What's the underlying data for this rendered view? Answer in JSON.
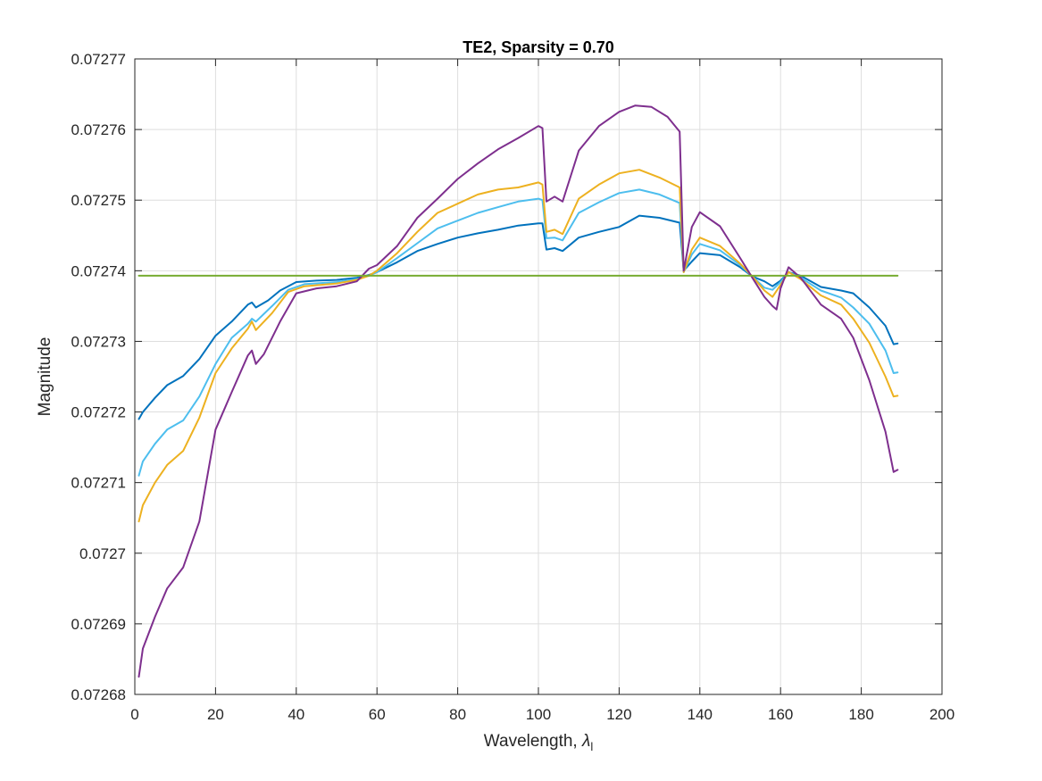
{
  "chart_data": {
    "type": "line",
    "title": "TE2, Sparsity = 0.70",
    "xlabel": "Wavelength, ",
    "xlabel_symbol": "λ",
    "xlabel_subscript": "l",
    "ylabel": "Magnitude",
    "xlim": [
      0,
      200
    ],
    "ylim": [
      0.07268,
      0.07277
    ],
    "xticks": [
      0,
      20,
      40,
      60,
      80,
      100,
      120,
      140,
      160,
      180,
      200
    ],
    "xtick_labels": [
      "0",
      "20",
      "40",
      "60",
      "80",
      "100",
      "120",
      "140",
      "160",
      "180",
      "200"
    ],
    "yticks": [
      0.07268,
      0.07269,
      0.0727,
      0.07271,
      0.07272,
      0.07273,
      0.07274,
      0.07275,
      0.07276,
      0.07277
    ],
    "ytick_labels": [
      "0.07268",
      "0.07269",
      "0.0727",
      "0.07271",
      "0.07272",
      "0.07273",
      "0.07274",
      "0.07275",
      "0.07276",
      "0.07277"
    ],
    "grid": true,
    "series": [
      {
        "color": "#0072BD",
        "points": [
          [
            1,
            0.072719
          ],
          [
            2,
            0.07272
          ],
          [
            5,
            0.072722
          ],
          [
            8,
            0.0727238
          ],
          [
            12,
            0.0727251
          ],
          [
            16,
            0.0727275
          ],
          [
            20,
            0.0727308
          ],
          [
            24,
            0.0727328
          ],
          [
            28,
            0.0727352
          ],
          [
            29,
            0.0727355
          ],
          [
            30,
            0.0727348
          ],
          [
            33,
            0.0727358
          ],
          [
            36,
            0.0727372
          ],
          [
            40,
            0.0727384
          ],
          [
            45,
            0.0727386
          ],
          [
            50,
            0.0727387
          ],
          [
            55,
            0.072739
          ],
          [
            58,
            0.0727394
          ],
          [
            60,
            0.0727398
          ],
          [
            65,
            0.0727412
          ],
          [
            70,
            0.0727428
          ],
          [
            75,
            0.0727438
          ],
          [
            80,
            0.0727447
          ],
          [
            85,
            0.0727453
          ],
          [
            90,
            0.0727458
          ],
          [
            95,
            0.0727464
          ],
          [
            100,
            0.0727467
          ],
          [
            101,
            0.0727467
          ],
          [
            102,
            0.072743
          ],
          [
            104,
            0.0727432
          ],
          [
            106,
            0.0727428
          ],
          [
            110,
            0.0727447
          ],
          [
            115,
            0.0727455
          ],
          [
            120,
            0.0727462
          ],
          [
            125,
            0.0727478
          ],
          [
            130,
            0.0727475
          ],
          [
            135,
            0.0727468
          ],
          [
            136,
            0.07274
          ],
          [
            138,
            0.0727413
          ],
          [
            140,
            0.0727425
          ],
          [
            145,
            0.0727422
          ],
          [
            150,
            0.0727405
          ],
          [
            153,
            0.0727392
          ],
          [
            156,
            0.0727385
          ],
          [
            158,
            0.0727378
          ],
          [
            160,
            0.0727386
          ],
          [
            162,
            0.0727398
          ],
          [
            165,
            0.0727393
          ],
          [
            170,
            0.0727377
          ],
          [
            175,
            0.0727372
          ],
          [
            178,
            0.0727368
          ],
          [
            182,
            0.0727348
          ],
          [
            186,
            0.0727322
          ],
          [
            188,
            0.0727296
          ],
          [
            189,
            0.0727297
          ]
        ]
      },
      {
        "color": "#4DBEEE",
        "points": [
          [
            1,
            0.072711
          ],
          [
            2,
            0.072713
          ],
          [
            5,
            0.0727155
          ],
          [
            8,
            0.0727175
          ],
          [
            12,
            0.0727188
          ],
          [
            16,
            0.0727222
          ],
          [
            20,
            0.0727268
          ],
          [
            24,
            0.0727305
          ],
          [
            28,
            0.0727325
          ],
          [
            29,
            0.0727332
          ],
          [
            30,
            0.0727328
          ],
          [
            34,
            0.072735
          ],
          [
            38,
            0.0727373
          ],
          [
            42,
            0.0727381
          ],
          [
            50,
            0.0727384
          ],
          [
            55,
            0.0727388
          ],
          [
            58,
            0.0727393
          ],
          [
            60,
            0.0727398
          ],
          [
            65,
            0.0727418
          ],
          [
            70,
            0.0727439
          ],
          [
            75,
            0.072746
          ],
          [
            80,
            0.0727471
          ],
          [
            85,
            0.0727482
          ],
          [
            90,
            0.072749
          ],
          [
            95,
            0.0727498
          ],
          [
            100,
            0.0727502
          ],
          [
            101,
            0.07275
          ],
          [
            102,
            0.0727446
          ],
          [
            104,
            0.0727447
          ],
          [
            106,
            0.0727443
          ],
          [
            110,
            0.0727482
          ],
          [
            115,
            0.0727497
          ],
          [
            120,
            0.072751
          ],
          [
            125,
            0.0727515
          ],
          [
            130,
            0.0727508
          ],
          [
            135,
            0.0727496
          ],
          [
            136,
            0.0727398
          ],
          [
            138,
            0.0727423
          ],
          [
            140,
            0.0727438
          ],
          [
            145,
            0.0727429
          ],
          [
            150,
            0.0727408
          ],
          [
            153,
            0.0727392
          ],
          [
            156,
            0.0727376
          ],
          [
            158,
            0.0727373
          ],
          [
            160,
            0.0727384
          ],
          [
            162,
            0.0727398
          ],
          [
            165,
            0.072739
          ],
          [
            170,
            0.0727372
          ],
          [
            175,
            0.0727362
          ],
          [
            178,
            0.0727348
          ],
          [
            182,
            0.0727325
          ],
          [
            186,
            0.0727287
          ],
          [
            188,
            0.0727255
          ],
          [
            189,
            0.0727256
          ]
        ]
      },
      {
        "color": "#EDB120",
        "points": [
          [
            1,
            0.0727045
          ],
          [
            2,
            0.0727068
          ],
          [
            5,
            0.07271
          ],
          [
            8,
            0.0727125
          ],
          [
            12,
            0.0727145
          ],
          [
            16,
            0.0727192
          ],
          [
            20,
            0.0727255
          ],
          [
            24,
            0.072729
          ],
          [
            28,
            0.0727318
          ],
          [
            29,
            0.0727328
          ],
          [
            30,
            0.0727316
          ],
          [
            34,
            0.072734
          ],
          [
            38,
            0.072737
          ],
          [
            42,
            0.0727378
          ],
          [
            50,
            0.0727382
          ],
          [
            55,
            0.0727387
          ],
          [
            58,
            0.0727393
          ],
          [
            60,
            0.07274
          ],
          [
            65,
            0.0727425
          ],
          [
            70,
            0.0727455
          ],
          [
            75,
            0.0727482
          ],
          [
            80,
            0.0727495
          ],
          [
            85,
            0.0727508
          ],
          [
            90,
            0.0727515
          ],
          [
            95,
            0.0727518
          ],
          [
            100,
            0.0727525
          ],
          [
            101,
            0.0727522
          ],
          [
            102,
            0.0727455
          ],
          [
            104,
            0.0727458
          ],
          [
            106,
            0.0727452
          ],
          [
            110,
            0.0727502
          ],
          [
            115,
            0.0727522
          ],
          [
            120,
            0.0727538
          ],
          [
            125,
            0.0727543
          ],
          [
            130,
            0.0727532
          ],
          [
            135,
            0.0727518
          ],
          [
            136,
            0.0727398
          ],
          [
            138,
            0.072743
          ],
          [
            140,
            0.0727447
          ],
          [
            145,
            0.0727435
          ],
          [
            150,
            0.072741
          ],
          [
            153,
            0.0727392
          ],
          [
            156,
            0.0727372
          ],
          [
            158,
            0.0727363
          ],
          [
            160,
            0.072738
          ],
          [
            162,
            0.0727398
          ],
          [
            165,
            0.0727388
          ],
          [
            170,
            0.0727365
          ],
          [
            175,
            0.0727352
          ],
          [
            178,
            0.0727332
          ],
          [
            182,
            0.0727298
          ],
          [
            186,
            0.072725
          ],
          [
            188,
            0.0727222
          ],
          [
            189,
            0.0727223
          ]
        ]
      },
      {
        "color": "#7E2F8E",
        "points": [
          [
            1,
            0.0726825
          ],
          [
            2,
            0.0726865
          ],
          [
            5,
            0.072691
          ],
          [
            8,
            0.072695
          ],
          [
            12,
            0.072698
          ],
          [
            16,
            0.0727045
          ],
          [
            20,
            0.0727175
          ],
          [
            24,
            0.0727228
          ],
          [
            28,
            0.072728
          ],
          [
            29,
            0.0727287
          ],
          [
            30,
            0.0727268
          ],
          [
            32,
            0.0727282
          ],
          [
            36,
            0.0727328
          ],
          [
            40,
            0.0727368
          ],
          [
            45,
            0.0727375
          ],
          [
            50,
            0.0727378
          ],
          [
            55,
            0.0727385
          ],
          [
            58,
            0.0727403
          ],
          [
            60,
            0.0727408
          ],
          [
            65,
            0.0727435
          ],
          [
            70,
            0.0727475
          ],
          [
            75,
            0.0727502
          ],
          [
            80,
            0.072753
          ],
          [
            85,
            0.0727552
          ],
          [
            90,
            0.0727572
          ],
          [
            95,
            0.0727588
          ],
          [
            100,
            0.0727605
          ],
          [
            101,
            0.0727602
          ],
          [
            102,
            0.0727498
          ],
          [
            104,
            0.0727505
          ],
          [
            106,
            0.0727498
          ],
          [
            110,
            0.072757
          ],
          [
            115,
            0.0727605
          ],
          [
            120,
            0.0727625
          ],
          [
            124,
            0.0727634
          ],
          [
            128,
            0.0727632
          ],
          [
            132,
            0.0727618
          ],
          [
            135,
            0.0727597
          ],
          [
            136,
            0.07274
          ],
          [
            138,
            0.0727462
          ],
          [
            140,
            0.0727483
          ],
          [
            145,
            0.0727463
          ],
          [
            150,
            0.0727418
          ],
          [
            153,
            0.072739
          ],
          [
            156,
            0.0727363
          ],
          [
            158,
            0.072735
          ],
          [
            159,
            0.0727345
          ],
          [
            160,
            0.0727375
          ],
          [
            162,
            0.0727405
          ],
          [
            165,
            0.072739
          ],
          [
            170,
            0.0727352
          ],
          [
            175,
            0.0727332
          ],
          [
            178,
            0.0727305
          ],
          [
            182,
            0.0727245
          ],
          [
            186,
            0.0727172
          ],
          [
            188,
            0.0727115
          ],
          [
            189,
            0.0727118
          ]
        ]
      },
      {
        "color": "#77AC30",
        "points": [
          [
            1,
            0.0727393
          ],
          [
            189,
            0.0727393
          ]
        ]
      }
    ]
  }
}
